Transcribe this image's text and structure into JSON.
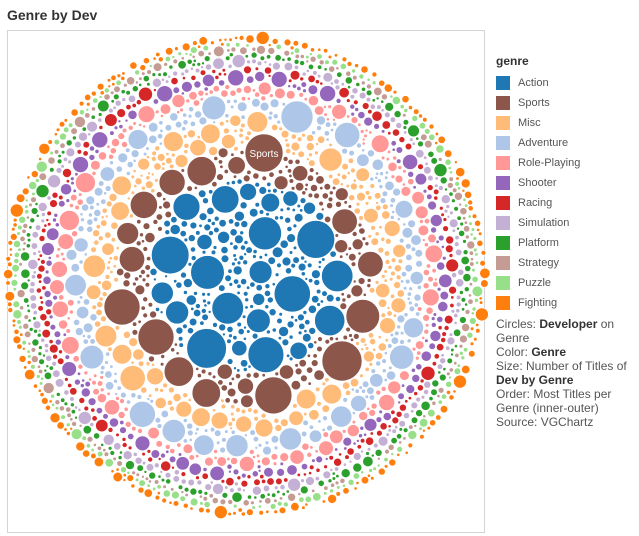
{
  "chart_data": {
    "type": "packed-bubble",
    "title": "Genre by Dev",
    "legend_title": "genre",
    "legend_placement": "right",
    "series": [
      {
        "name": "Action",
        "color": "#1f77b4"
      },
      {
        "name": "Sports",
        "color": "#8c564b"
      },
      {
        "name": "Misc",
        "color": "#ffbb78"
      },
      {
        "name": "Adventure",
        "color": "#aec7e8"
      },
      {
        "name": "Role-Playing",
        "color": "#ff9896"
      },
      {
        "name": "Shooter",
        "color": "#9467bd"
      },
      {
        "name": "Racing",
        "color": "#d62728"
      },
      {
        "name": "Simulation",
        "color": "#c5b0d5"
      },
      {
        "name": "Platform",
        "color": "#2ca02c"
      },
      {
        "name": "Strategy",
        "color": "#c49c94"
      },
      {
        "name": "Puzzle",
        "color": "#98df8a"
      },
      {
        "name": "Fighting",
        "color": "#ff7f0e"
      }
    ],
    "annotation": "Sports",
    "notes": {
      "circles_label": "Circles: ",
      "circles_value": "Developer",
      "circles_suffix": " on Genre",
      "color_label": "Color: ",
      "color_value": "Genre",
      "size_label": "Size: Number of Titles of ",
      "size_value": "Dev by Genre",
      "order": "Order: Most Titles per Genre (inner-outer)",
      "source": "Source: VGChartz"
    }
  }
}
